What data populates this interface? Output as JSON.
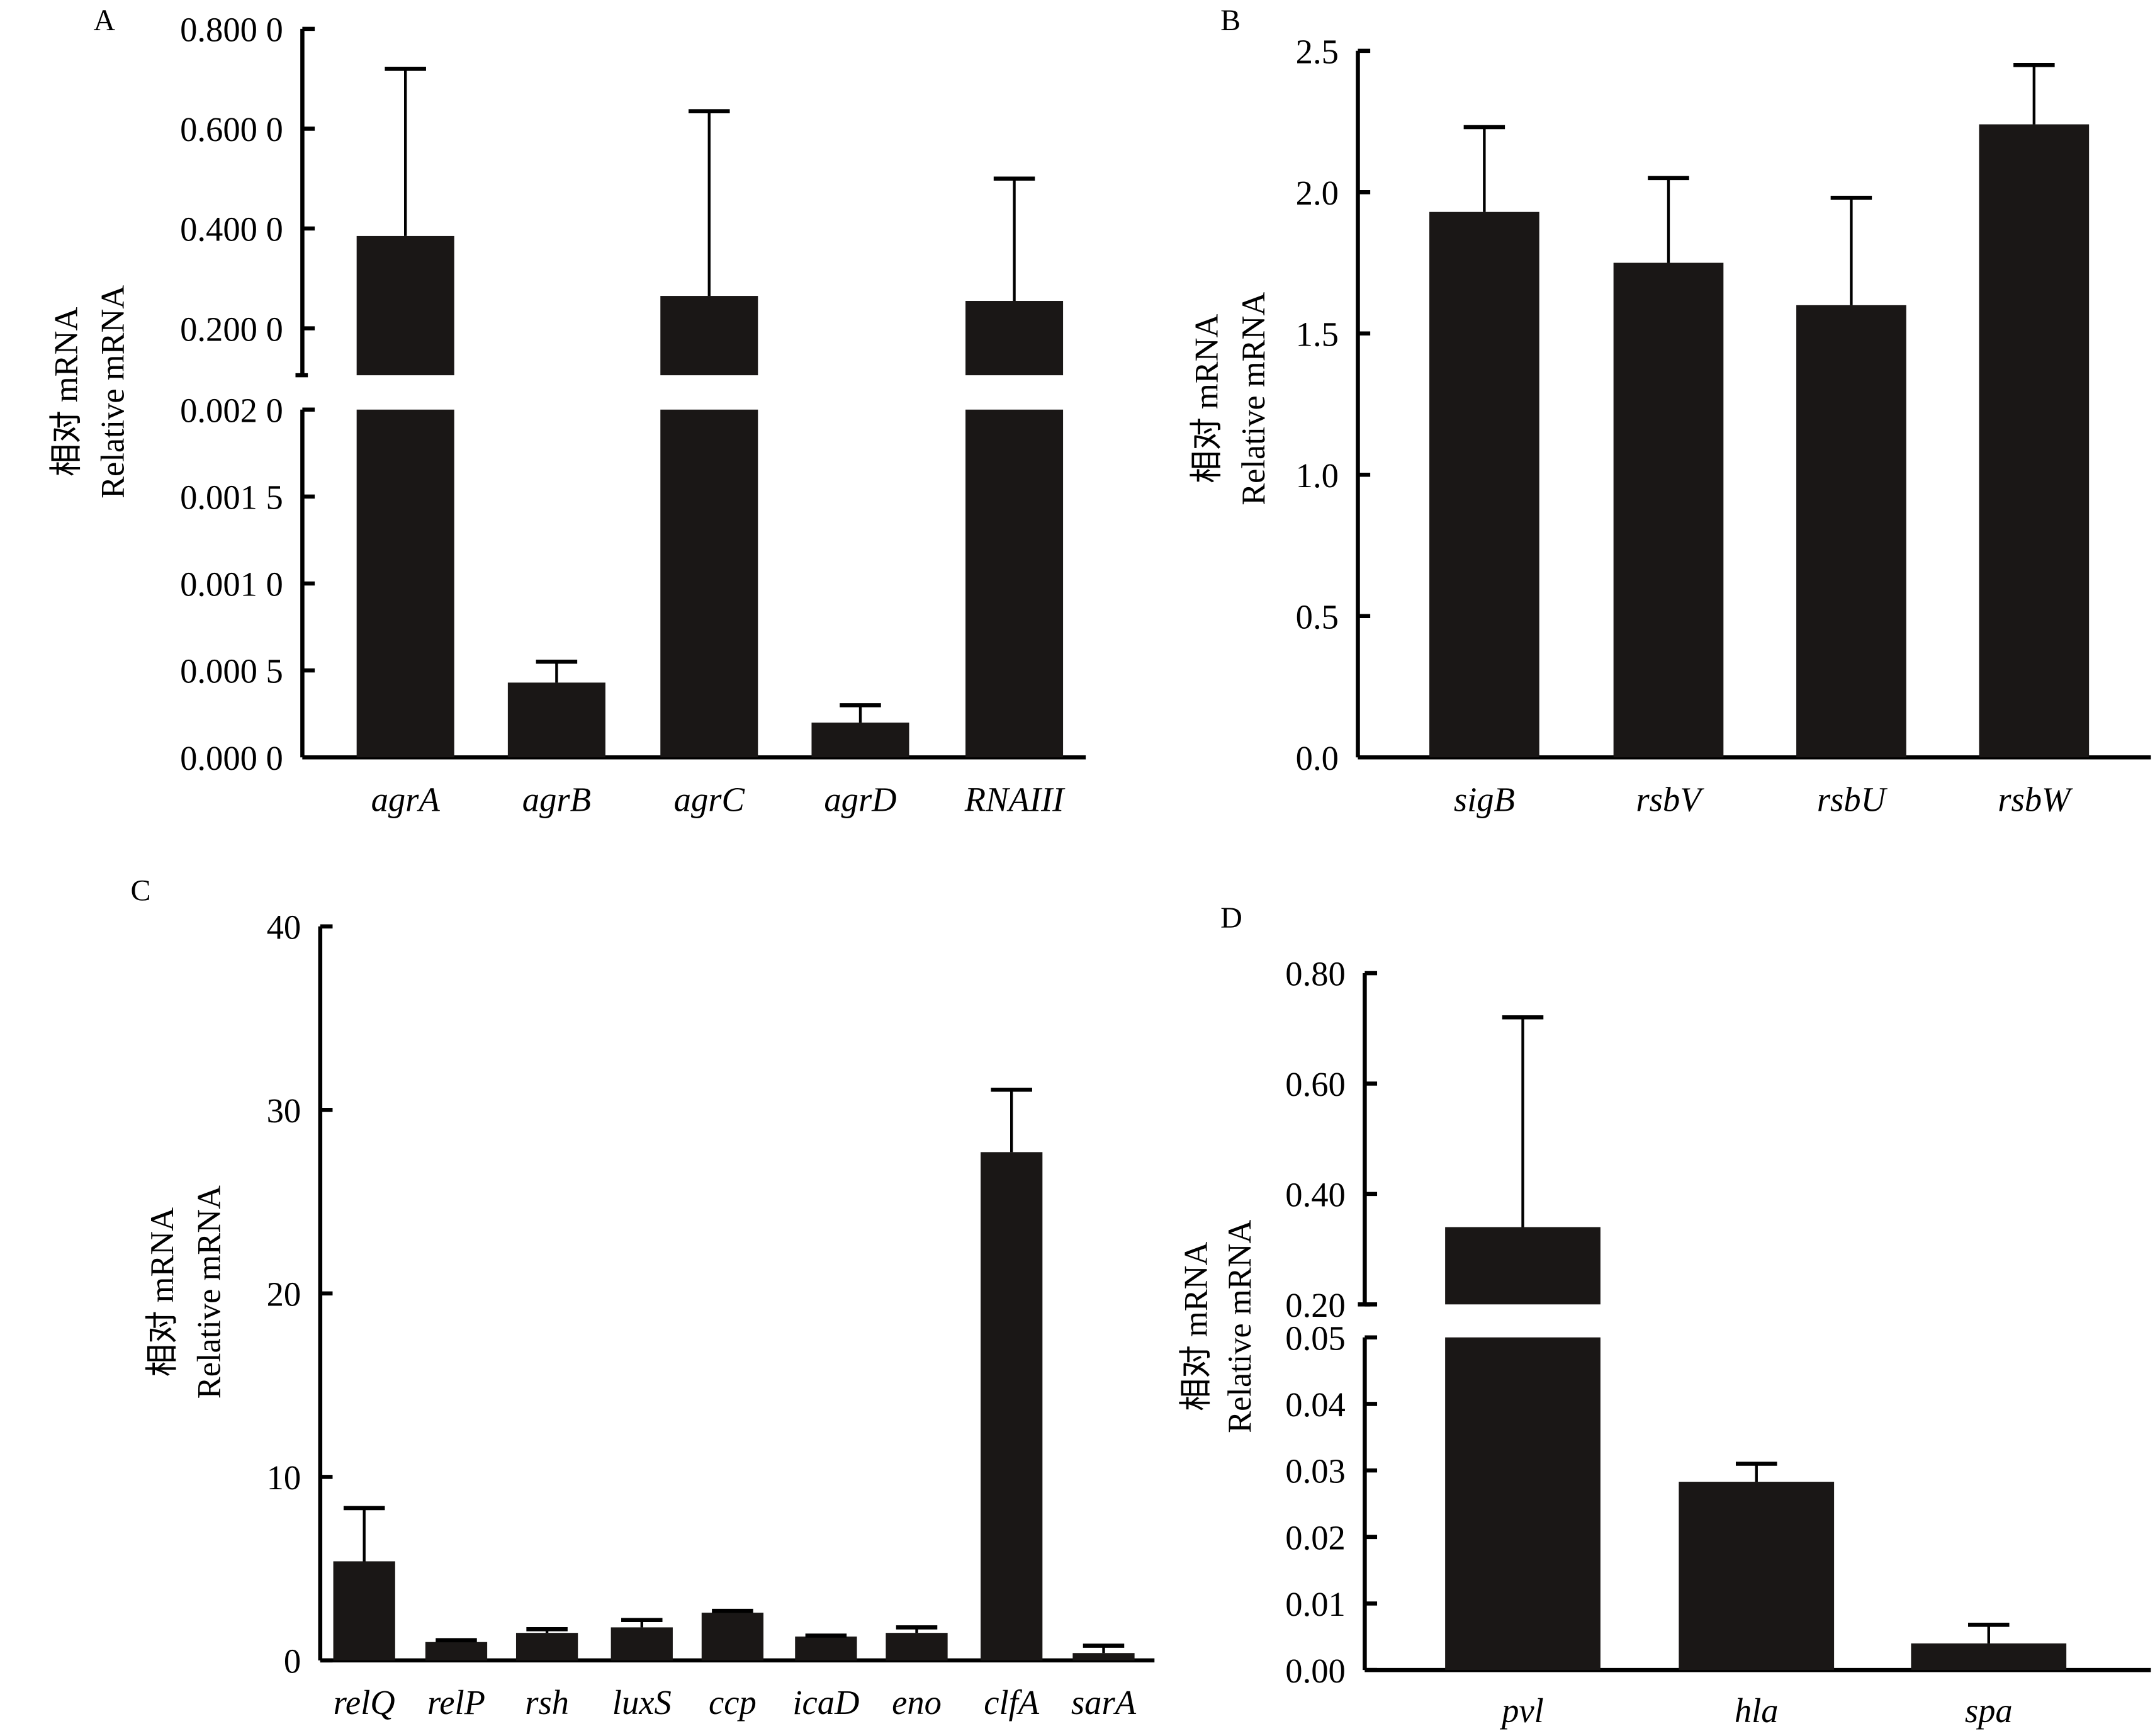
{
  "chart_data": [
    {
      "panel": "A",
      "type": "bar",
      "ylabel": [
        "相对 mRNA",
        "Relative mRNA"
      ],
      "y_axis_broken": true,
      "segments": [
        {
          "range": [
            0.0,
            0.002
          ],
          "ticks": [
            {
              "v": 0.0,
              "label": "0.000 0"
            },
            {
              "v": 0.0005,
              "label": "0.000 5"
            },
            {
              "v": 0.001,
              "label": "0.001 0"
            },
            {
              "v": 0.0015,
              "label": "0.001 5"
            },
            {
              "v": 0.002,
              "label": "0.002 0"
            }
          ]
        },
        {
          "range": [
            0.106,
            0.8
          ],
          "ticks": [
            {
              "v": 0.2,
              "label": "0.200 0"
            },
            {
              "v": 0.4,
              "label": "0.400 0"
            },
            {
              "v": 0.6,
              "label": "0.600 0"
            },
            {
              "v": 0.8,
              "label": "0.800 0"
            }
          ]
        }
      ],
      "categories": [
        "agrA",
        "agrB",
        "agrC",
        "agrD",
        "RNAIII"
      ],
      "values": [
        0.385,
        0.00043,
        0.265,
        0.0002,
        0.255
      ],
      "error_upper": [
        0.72,
        0.00055,
        0.635,
        0.0003,
        0.5
      ],
      "bar_color": "#1a1716"
    },
    {
      "panel": "B",
      "type": "bar",
      "ylabel": [
        "相对 mRNA",
        "Relative mRNA"
      ],
      "y_axis_broken": false,
      "segments": [
        {
          "range": [
            0.0,
            2.5
          ],
          "ticks": [
            {
              "v": 0,
              "label": "0.0"
            },
            {
              "v": 0.5,
              "label": "0.5"
            },
            {
              "v": 1.0,
              "label": "1.0"
            },
            {
              "v": 1.5,
              "label": "1.5"
            },
            {
              "v": 2.0,
              "label": "2.0"
            },
            {
              "v": 2.5,
              "label": "2.5"
            }
          ]
        }
      ],
      "categories": [
        "sigB",
        "rsbV",
        "rsbU",
        "rsbW"
      ],
      "values": [
        1.93,
        1.75,
        1.6,
        2.24
      ],
      "error_upper": [
        2.23,
        2.05,
        1.98,
        2.45
      ],
      "bar_color": "#1a1716"
    },
    {
      "panel": "C",
      "type": "bar",
      "ylabel": [
        "相对 mRNA",
        "Relative mRNA"
      ],
      "y_axis_broken": false,
      "segments": [
        {
          "range": [
            0,
            40
          ],
          "ticks": [
            {
              "v": 0,
              "label": "0"
            },
            {
              "v": 10,
              "label": "10"
            },
            {
              "v": 20,
              "label": "20"
            },
            {
              "v": 30,
              "label": "30"
            },
            {
              "v": 40,
              "label": "40"
            }
          ]
        }
      ],
      "categories": [
        "relQ",
        "relP",
        "rsh",
        "luxS",
        "ccp",
        "icaD",
        "eno",
        "clfA",
        "sarA"
      ],
      "values": [
        5.4,
        1.0,
        1.5,
        1.8,
        2.6,
        1.3,
        1.5,
        27.7,
        0.4
      ],
      "error_upper": [
        8.3,
        1.1,
        1.7,
        2.2,
        2.7,
        1.35,
        1.8,
        31.1,
        0.8
      ],
      "bar_color": "#1a1716"
    },
    {
      "panel": "D",
      "type": "bar",
      "ylabel": [
        "相对 mRNA",
        "Relative mRNA"
      ],
      "y_axis_broken": true,
      "segments": [
        {
          "range": [
            0.0,
            0.05
          ],
          "ticks": [
            {
              "v": 0,
              "label": "0.00"
            },
            {
              "v": 0.01,
              "label": "0.01"
            },
            {
              "v": 0.02,
              "label": "0.02"
            },
            {
              "v": 0.03,
              "label": "0.03"
            },
            {
              "v": 0.04,
              "label": "0.04"
            },
            {
              "v": 0.05,
              "label": "0.05"
            }
          ]
        },
        {
          "range": [
            0.2,
            0.8
          ],
          "ticks": [
            {
              "v": 0.2,
              "label": "0.20"
            },
            {
              "v": 0.4,
              "label": "0.40"
            },
            {
              "v": 0.6,
              "label": "0.60"
            },
            {
              "v": 0.8,
              "label": "0.80"
            }
          ]
        }
      ],
      "categories": [
        "pvl",
        "hla",
        "spa"
      ],
      "values": [
        0.34,
        0.0283,
        0.004
      ],
      "error_upper": [
        0.72,
        0.031,
        0.0068
      ],
      "bar_color": "#1a1716"
    }
  ]
}
